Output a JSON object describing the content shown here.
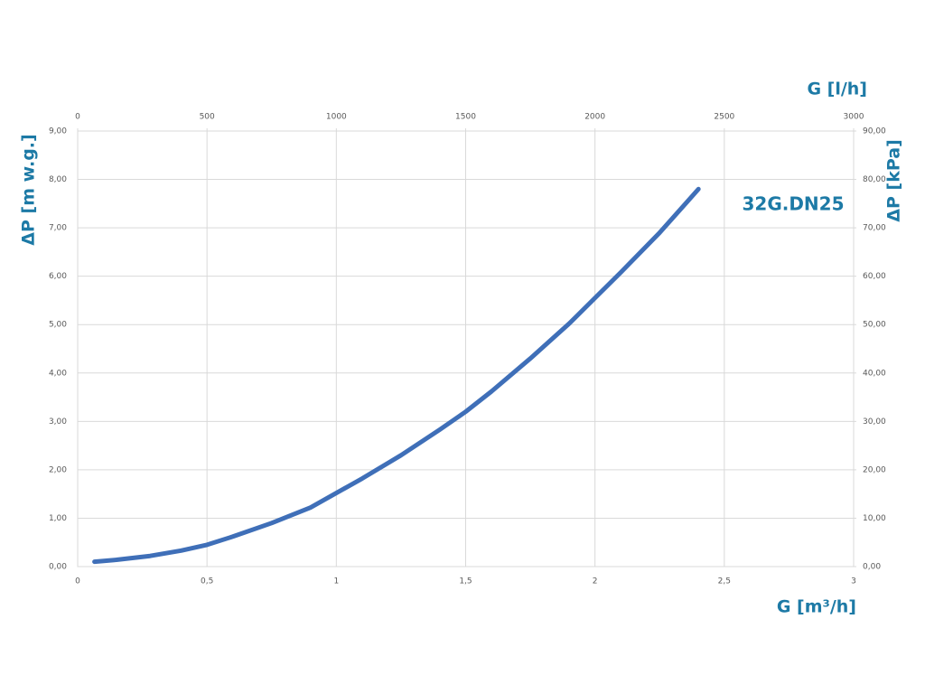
{
  "chart_data": {
    "type": "line",
    "annotation": "32G.DN25",
    "x_label": "G [m³/h]",
    "x2_label": "G [l/h]",
    "y_label": "ΔP [m w.g.]",
    "y2_label": "ΔP [kPa]",
    "x": [
      0.065,
      0.15,
      0.28,
      0.4,
      0.5,
      0.6,
      0.75,
      0.9,
      1.0,
      1.1,
      1.25,
      1.4,
      1.5,
      1.6,
      1.75,
      1.9,
      2.0,
      2.1,
      2.25,
      2.4
    ],
    "series": [
      {
        "name": "32G.DN25",
        "color": "#3f6fb8",
        "values": [
          0.1,
          0.14,
          0.22,
          0.33,
          0.45,
          0.62,
          0.9,
          1.22,
          1.52,
          1.82,
          2.3,
          2.83,
          3.2,
          3.62,
          4.3,
          5.02,
          5.55,
          6.08,
          6.9,
          7.8
        ]
      }
    ],
    "xlim": [
      0,
      3
    ],
    "xticks": [
      0,
      {
        "value": 0.5,
        "label": "0,5"
      },
      1,
      {
        "value": 1.5,
        "label": "1,5"
      },
      2,
      {
        "value": 2.5,
        "label": "2,5"
      },
      3
    ],
    "x2lim": [
      0,
      3000
    ],
    "x2ticks": [
      0,
      500,
      1000,
      1500,
      2000,
      2500,
      3000
    ],
    "ylim": [
      0,
      9
    ],
    "yticks": [
      {
        "value": 0,
        "label": "0,00"
      },
      {
        "value": 1,
        "label": "1,00"
      },
      {
        "value": 2,
        "label": "2,00"
      },
      {
        "value": 3,
        "label": "3,00"
      },
      {
        "value": 4,
        "label": "4,00"
      },
      {
        "value": 5,
        "label": "5,00"
      },
      {
        "value": 6,
        "label": "6,00"
      },
      {
        "value": 7,
        "label": "7,00"
      },
      {
        "value": 8,
        "label": "8,00"
      },
      {
        "value": 9,
        "label": "9,00"
      }
    ],
    "y2lim": [
      0,
      90
    ],
    "y2ticks": [
      {
        "value": 0,
        "label": "0,00"
      },
      {
        "value": 10,
        "label": "10,00"
      },
      {
        "value": 20,
        "label": "20,00"
      },
      {
        "value": 30,
        "label": "30,00"
      },
      {
        "value": 40,
        "label": "40,00"
      },
      {
        "value": 50,
        "label": "50,00"
      },
      {
        "value": 60,
        "label": "60,00"
      },
      {
        "value": 70,
        "label": "70,00"
      },
      {
        "value": 80,
        "label": "80,00"
      },
      {
        "value": 90,
        "label": "90,00"
      }
    ],
    "grid": true
  }
}
